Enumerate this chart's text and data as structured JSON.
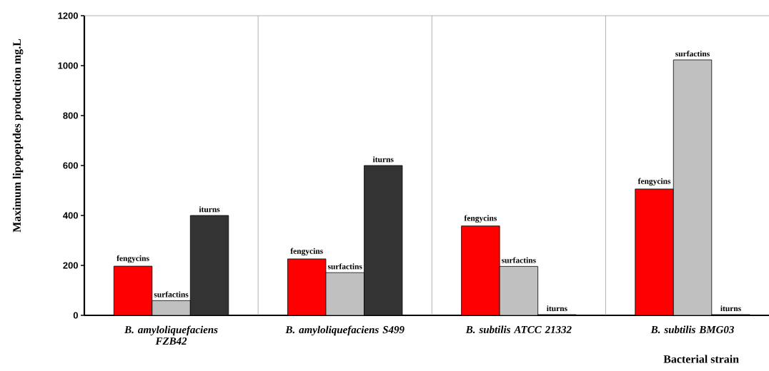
{
  "chart_data": {
    "type": "bar",
    "xlabel": "Bacterial   strain",
    "ylabel": "Maximum  lipopeptdes  production  mg.L",
    "categories": [
      "B. amyloliquefaciens FZB42",
      "B. amyloliquefaciens S499",
      "B. subtilis ATCC 21332",
      "B. subtilis BMG03"
    ],
    "series": [
      {
        "name": "fengycins",
        "color": "#ff0000",
        "values": [
          197,
          226,
          358,
          506
        ]
      },
      {
        "name": "surfactins",
        "color": "#c0c0c0",
        "values": [
          59,
          171,
          196,
          1023
        ]
      },
      {
        "name": "iturns",
        "color": "#333333",
        "values": [
          400,
          600,
          3,
          3
        ]
      }
    ],
    "ylim": [
      0,
      1200
    ],
    "yticks": [
      0,
      200,
      400,
      600,
      800,
      1000,
      1200
    ],
    "grid": "x"
  }
}
